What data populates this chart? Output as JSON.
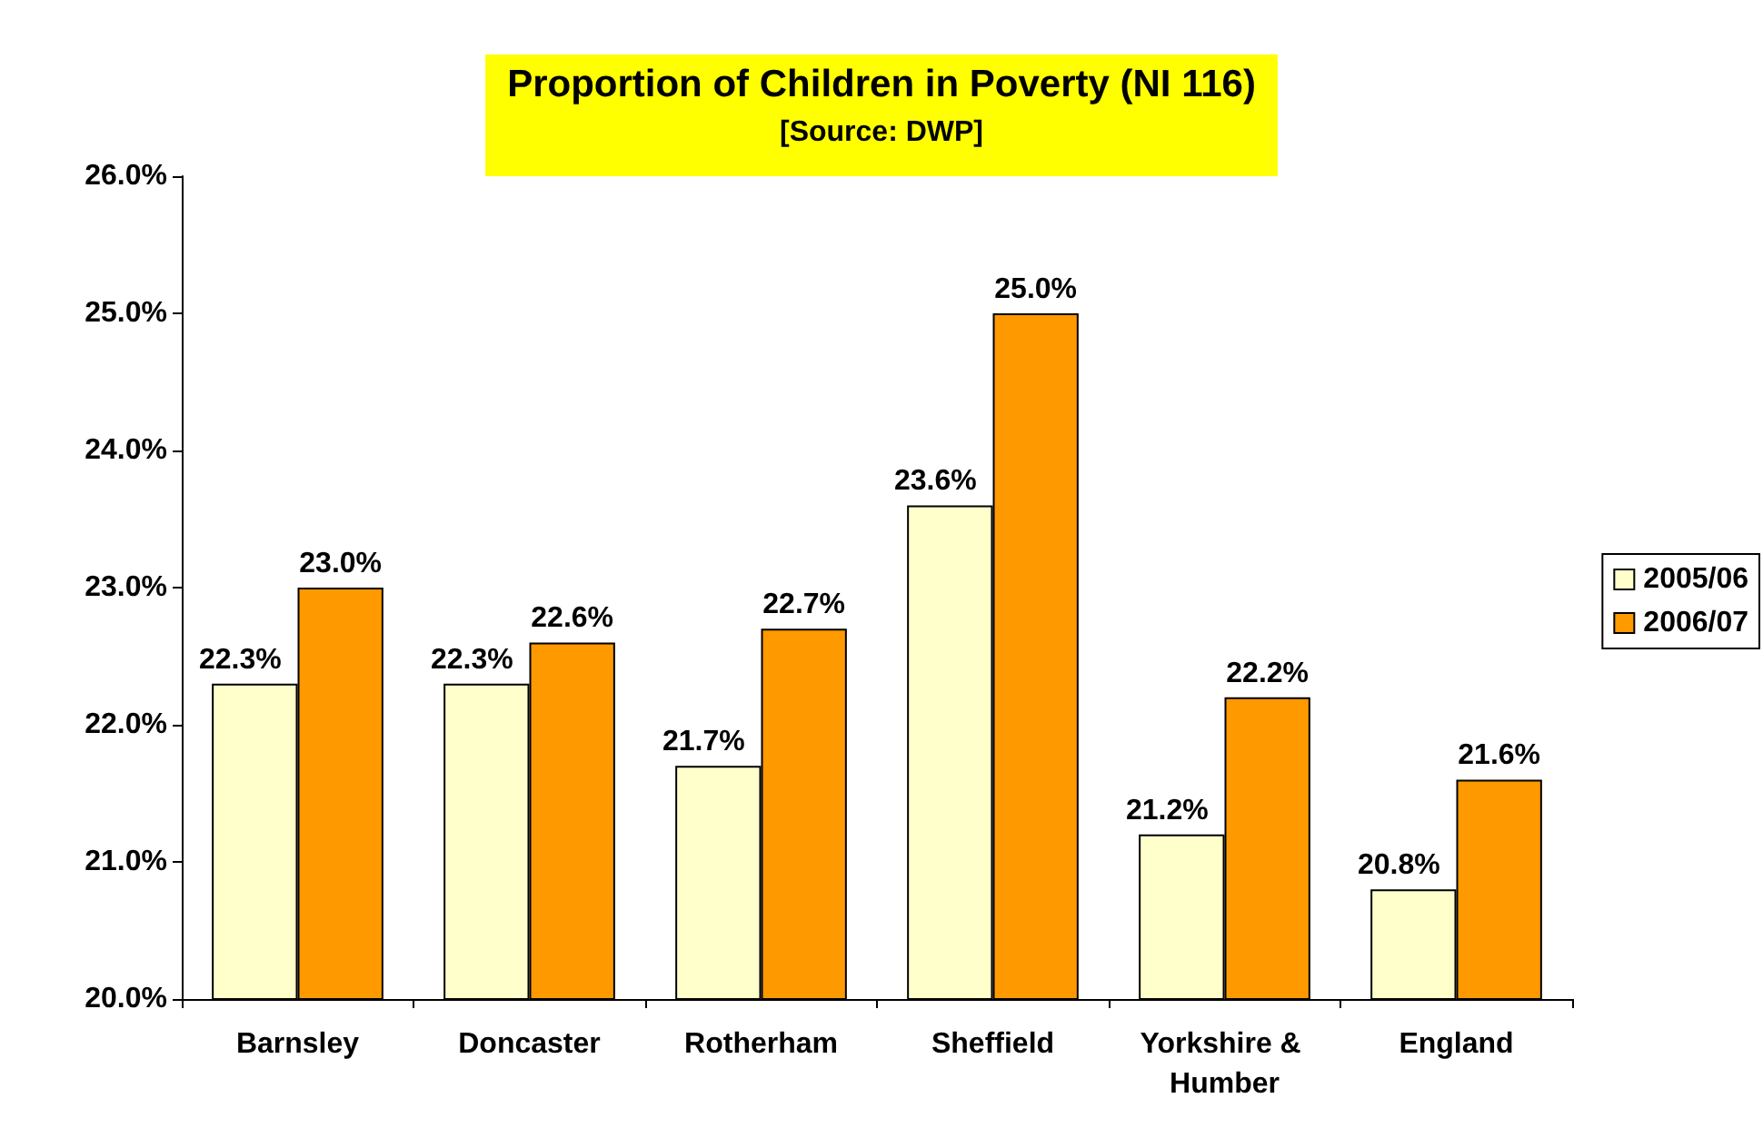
{
  "chart_data": {
    "type": "bar",
    "title": "Proportion of Children in Poverty (NI 116)",
    "subtitle": "[Source: DWP]",
    "categories": [
      "Barnsley",
      "Doncaster",
      "Rotherham",
      "Sheffield",
      "Yorkshire & Humber",
      "England"
    ],
    "series": [
      {
        "name": "2005/06",
        "color": "#ffffcc",
        "values": [
          22.3,
          22.3,
          21.7,
          23.6,
          21.2,
          20.8
        ],
        "value_labels": [
          "22.3%",
          "22.3%",
          "21.7%",
          "23.6%",
          "21.2%",
          "20.8%"
        ]
      },
      {
        "name": "2006/07",
        "color": "#ff9900",
        "values": [
          23.0,
          22.6,
          22.7,
          25.0,
          22.2,
          21.6
        ],
        "value_labels": [
          "23.0%",
          "22.6%",
          "22.7%",
          "25.0%",
          "22.2%",
          "21.6%"
        ]
      }
    ],
    "ylim": [
      20,
      26
    ],
    "yticks": [
      {
        "value": 20,
        "label": "20.0%"
      },
      {
        "value": 21,
        "label": "21.0%"
      },
      {
        "value": 22,
        "label": "22.0%"
      },
      {
        "value": 23,
        "label": "23.0%"
      },
      {
        "value": 24,
        "label": "24.0%"
      },
      {
        "value": 25,
        "label": "25.0%"
      },
      {
        "value": 26,
        "label": "26.0%"
      }
    ],
    "grid": false,
    "legend": "right"
  }
}
